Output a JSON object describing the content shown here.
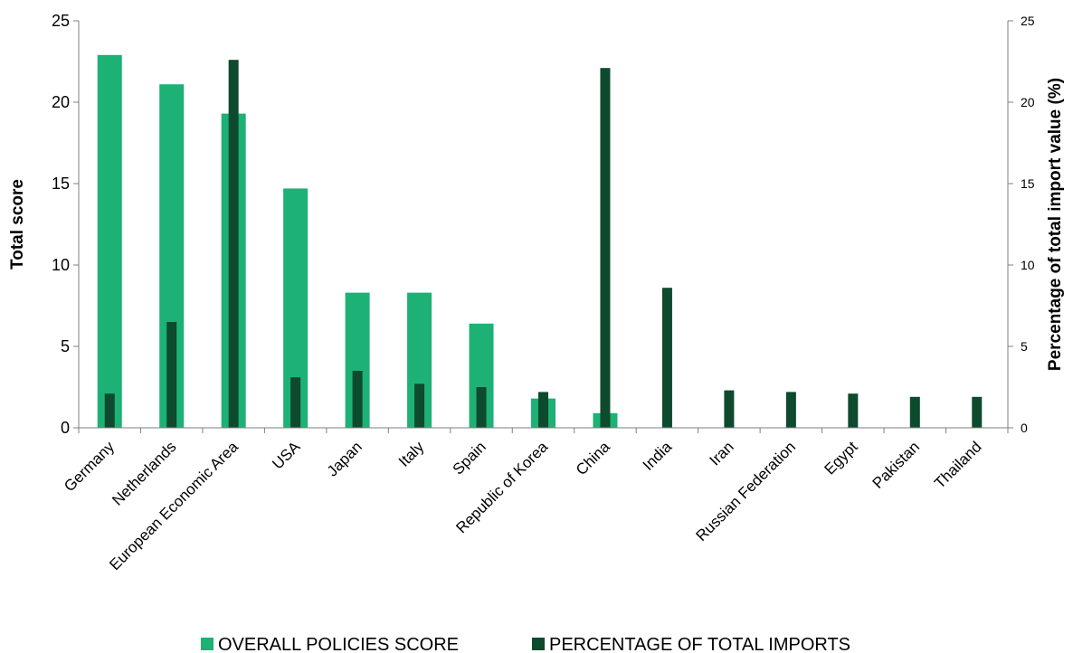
{
  "chart_data": {
    "type": "bar",
    "categories": [
      "Germany",
      "Netherlands",
      "European Economic Area",
      "USA",
      "Japan",
      "Italy",
      "Spain",
      "Republic of Korea",
      "China",
      "India",
      "Iran",
      "Russian Federation",
      "Egypt",
      "Pakistan",
      "Thailand"
    ],
    "series": [
      {
        "name": "OVERALL POLICIES SCORE",
        "axis": "left",
        "color": "#1db175",
        "values": [
          22.9,
          21.1,
          19.3,
          14.7,
          8.3,
          8.3,
          6.4,
          1.8,
          0.9,
          0,
          0,
          0,
          0,
          0,
          0
        ]
      },
      {
        "name": "PERCENTAGE OF TOTAL IMPORTS",
        "axis": "right",
        "color": "#0d4a2e",
        "values": [
          2.1,
          6.5,
          22.6,
          3.1,
          3.5,
          2.7,
          2.5,
          2.2,
          22.1,
          8.6,
          2.3,
          2.2,
          2.1,
          1.9,
          1.9
        ]
      }
    ],
    "ylabel": "Total score",
    "y2label": "Percentage of total import value (%)",
    "ylim": [
      0,
      25
    ],
    "y2lim": [
      0,
      25
    ],
    "yticks": [
      "0",
      "5",
      "10",
      "15",
      "20",
      "25"
    ],
    "y2ticks": [
      "0",
      "5",
      "10",
      "15",
      "20",
      "25"
    ],
    "grid": false,
    "legend_position": "bottom"
  }
}
